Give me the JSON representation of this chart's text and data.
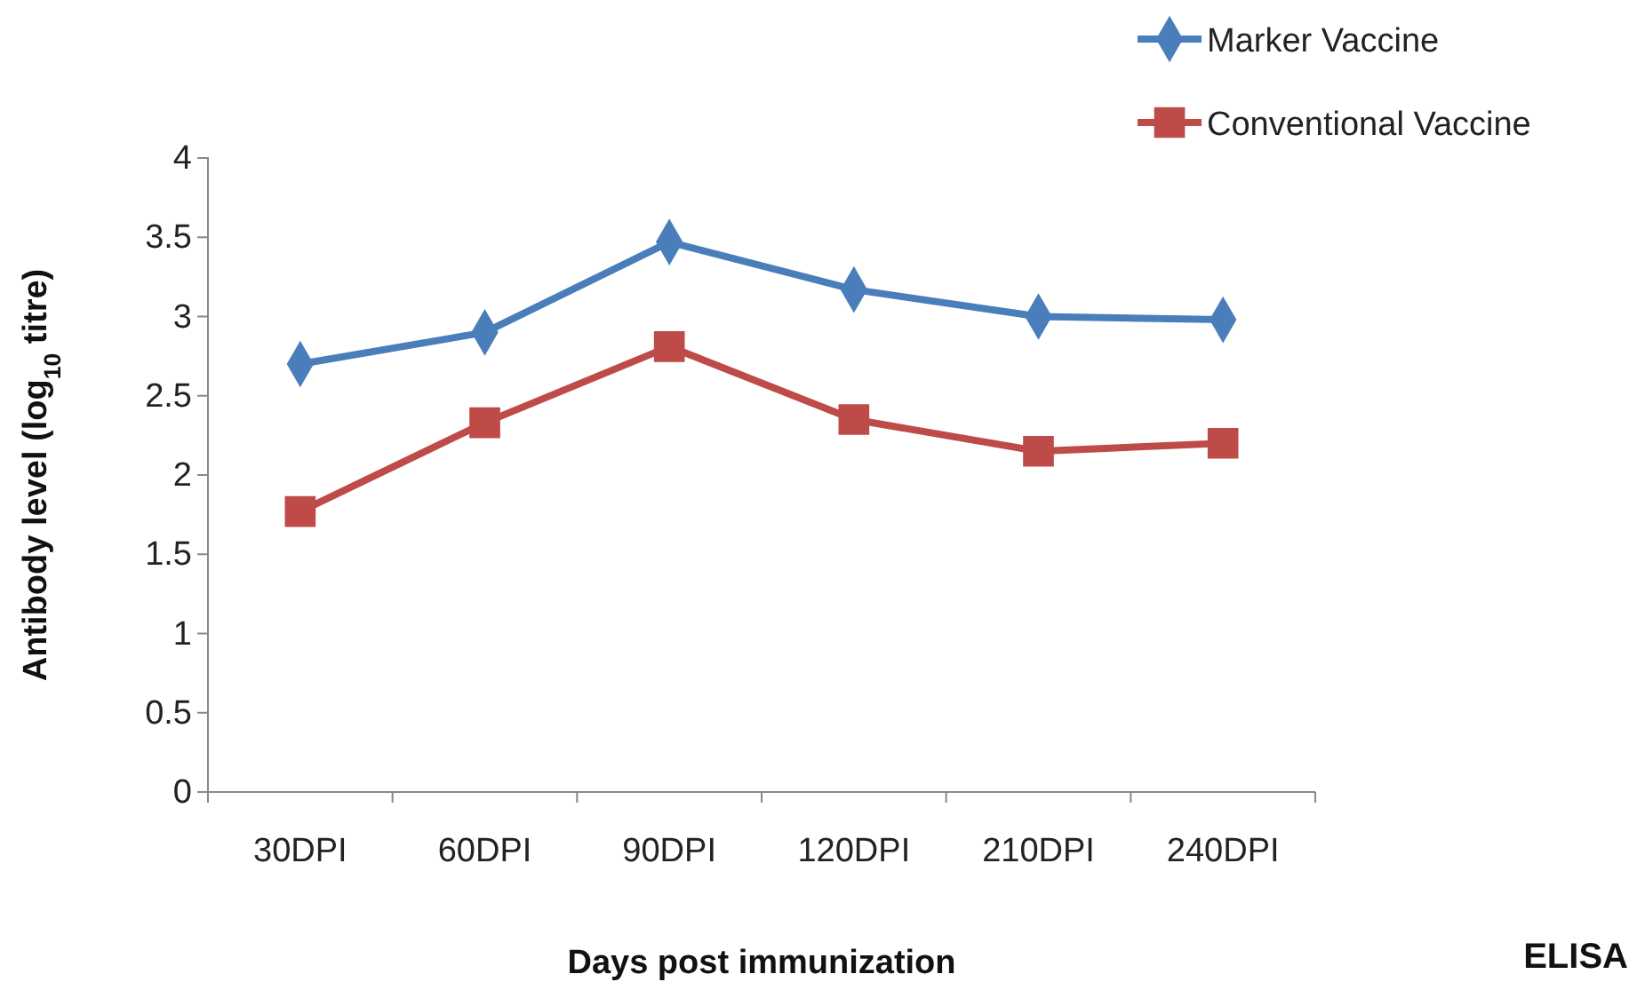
{
  "chart_data": {
    "type": "line",
    "xlabel": "Days post immunization",
    "ylabel": "Antibody level (log$_{10}$ titre)",
    "categories": [
      "30DPI",
      "60DPI",
      "90DPI",
      "120DPI",
      "210DPI",
      "240DPI"
    ],
    "series": [
      {
        "name": "Marker Vaccine",
        "color": "#4a7ebb",
        "marker": "diamond",
        "values": [
          2.7,
          2.9,
          3.47,
          3.17,
          3.0,
          2.98
        ]
      },
      {
        "name": "Conventional Vaccine",
        "color": "#be4b48",
        "marker": "square",
        "values": [
          1.77,
          2.33,
          2.81,
          2.35,
          2.15,
          2.2
        ]
      }
    ],
    "ylim": [
      0,
      4
    ],
    "yticks": [
      0,
      0.5,
      1,
      1.5,
      2,
      2.5,
      3,
      3.5,
      4
    ],
    "grid": false,
    "legend": "top right",
    "line_style": "solid",
    "annotations": [
      "ELISA"
    ]
  }
}
